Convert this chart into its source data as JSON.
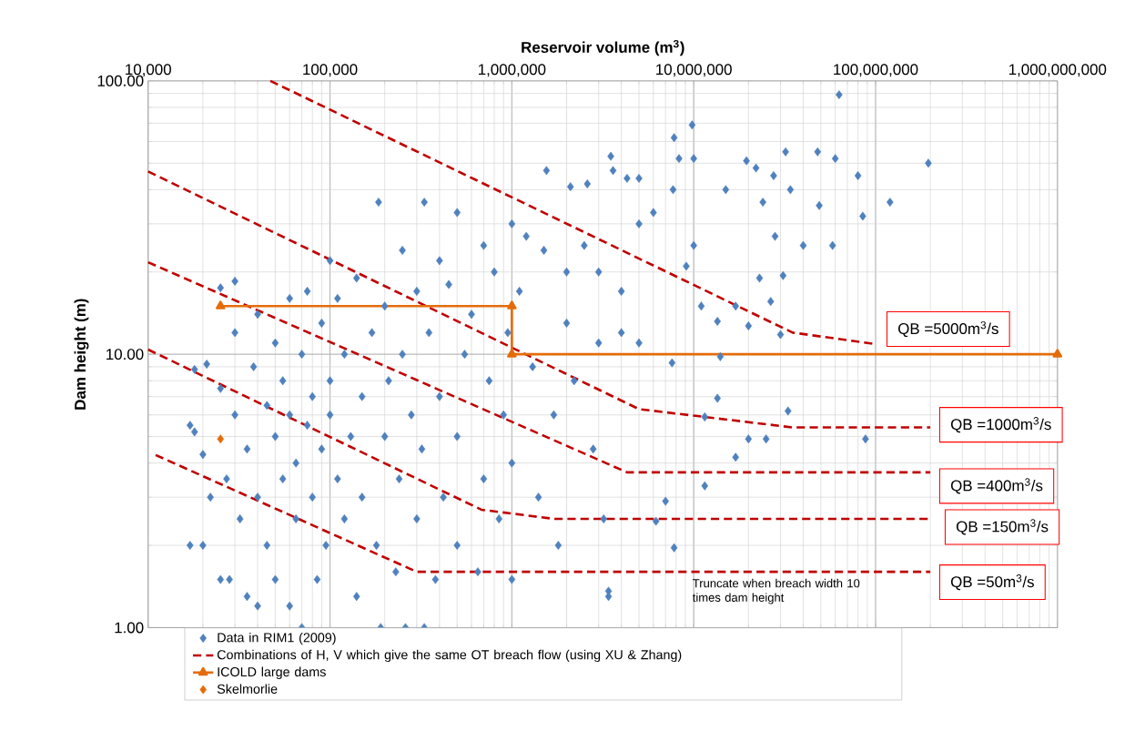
{
  "chart_data": {
    "type": "scatter",
    "xlabel": "Reservoir volume (m$^{3}$)",
    "ylabel": "Dam height (m)",
    "log": "xy",
    "grid": true,
    "legend": "bottom",
    "xlim": [
      10000,
      1000000000
    ],
    "ylim": [
      1,
      100
    ],
    "xticks": [
      {
        "value": 10000,
        "label": "10,000"
      },
      {
        "value": 100000,
        "label": "100,000"
      },
      {
        "value": 1000000,
        "label": "1,000,000"
      },
      {
        "value": 10000000,
        "label": "10,000,000"
      },
      {
        "value": 100000000,
        "label": "100,000,000"
      },
      {
        "value": 1000000000,
        "label": "1,000,000,000"
      }
    ],
    "yticks": [
      {
        "value": 1,
        "label": "1.00"
      },
      {
        "value": 10,
        "label": "10.00"
      },
      {
        "value": 100,
        "label": "100.00"
      }
    ],
    "marker": "diamond",
    "series": [
      {
        "name": "Data in RIM1 (2009)",
        "color": "#4f81bd",
        "x": [
          17000,
          17000,
          18000,
          18000,
          20000,
          20000,
          21000,
          22000,
          25000,
          25000,
          28000,
          30000,
          25000,
          27000,
          30000,
          30000,
          32000,
          35000,
          35000,
          38000,
          40000,
          40000,
          40000,
          45000,
          45000,
          50000,
          50000,
          50000,
          55000,
          55000,
          60000,
          60000,
          60000,
          65000,
          65000,
          70000,
          70000,
          75000,
          75000,
          80000,
          80000,
          85000,
          90000,
          90000,
          95000,
          100000,
          100000,
          100000,
          110000,
          110000,
          120000,
          120000,
          130000,
          140000,
          140000,
          150000,
          150000,
          170000,
          180000,
          185000,
          190000,
          200000,
          200000,
          210000,
          230000,
          240000,
          250000,
          250000,
          260000,
          280000,
          300000,
          300000,
          320000,
          330000,
          330000,
          350000,
          380000,
          400000,
          400000,
          420000,
          450000,
          500000,
          500000,
          500000,
          550000,
          600000,
          650000,
          700000,
          700000,
          750000,
          800000,
          850000,
          900000,
          950000,
          1000000,
          1000000,
          1000000,
          1100000,
          1200000,
          1300000,
          1400000,
          1500000,
          1550000,
          1700000,
          1800000,
          2000000,
          2000000,
          2100000,
          2200000,
          2500000,
          2600000,
          2800000,
          3000000,
          3000000,
          3200000,
          3400000,
          3400000,
          3500000,
          3600000,
          4000000,
          4000000,
          4300000,
          5000000,
          5000000,
          5000000,
          6000000,
          6200000,
          7000000,
          7600000,
          7700000,
          7800000,
          7800000,
          8300000,
          9100000,
          9800000,
          10000000,
          10000000,
          11000000,
          11500000,
          11500000,
          13500000,
          13500000,
          14000000,
          15000000,
          17000000,
          17000000,
          19500000,
          20000000,
          20000000,
          22000000,
          23000000,
          24000000,
          25000000,
          26500000,
          27500000,
          28000000,
          30000000,
          31000000,
          32000000,
          33000000,
          34000000,
          40000000,
          48000000,
          49000000,
          58000000,
          60000000,
          63000000,
          80000000,
          85000000,
          88000000,
          120000000,
          195000000
        ],
        "values": [
          2.0,
          5.5,
          5.2,
          8.8,
          2.0,
          4.3,
          9.2,
          3.0,
          1.5,
          17.5,
          1.5,
          18.5,
          7.5,
          3.5,
          12,
          6,
          2.5,
          1.3,
          4.5,
          9,
          3,
          1.2,
          14,
          6.5,
          2,
          5,
          11,
          1.5,
          3.5,
          8,
          16,
          6,
          1.2,
          2.5,
          4,
          1.0,
          10,
          5.5,
          17,
          3,
          7,
          1.5,
          13,
          4.5,
          2,
          22,
          8,
          6,
          3.5,
          16,
          10,
          2.5,
          5,
          19,
          1.3,
          7,
          3,
          12,
          2,
          36,
          1.0,
          5,
          15,
          8,
          1.6,
          3.5,
          24,
          10,
          1.0,
          6,
          2.5,
          17,
          4.5,
          1.0,
          36,
          12,
          1.5,
          7,
          22,
          3,
          18,
          5,
          33,
          2,
          10,
          14,
          1.6,
          25,
          3.5,
          8,
          20,
          2.5,
          6,
          12,
          30,
          4,
          1.5,
          17,
          27,
          9,
          3,
          24,
          47,
          6,
          2,
          20,
          13,
          41,
          8,
          25,
          42,
          4.5,
          20,
          11,
          2.5,
          1.36,
          1.3,
          53,
          47,
          17,
          12,
          44,
          30,
          44,
          11,
          33,
          2.45,
          2.9,
          9.3,
          40,
          1.96,
          62,
          52,
          21,
          69,
          52,
          25,
          15,
          5.9,
          3.3,
          6.9,
          13.2,
          9.8,
          40,
          15,
          4.2,
          51,
          12.7,
          4.9,
          48,
          19,
          36,
          4.9,
          15.6,
          45,
          27,
          11.8,
          19.4,
          55,
          6.2,
          40,
          25,
          55,
          35,
          25,
          52,
          89,
          45,
          32,
          4.9,
          36,
          50
        ]
      },
      {
        "name": "Combinations of H, V which give the same OT breach flow (using XU & Zhang)",
        "type": "line",
        "color": "#c00000",
        "line_style": "dashed",
        "marker": "none",
        "x": [
          47000,
          35000000,
          100000000
        ],
        "values": [
          100,
          12,
          10.9
        ]
      },
      {
        "type": "line",
        "color": "#c00000",
        "line_style": "dashed",
        "marker": "none",
        "x": [
          10000,
          5000000,
          35000000,
          200000000
        ],
        "values": [
          46.6,
          6.3,
          5.4,
          5.4
        ]
      },
      {
        "type": "line",
        "color": "#c00000",
        "line_style": "dashed",
        "marker": "none",
        "x": [
          10000,
          4300000,
          200000000
        ],
        "values": [
          21.7,
          3.7,
          3.7
        ]
      },
      {
        "type": "line",
        "color": "#c00000",
        "line_style": "dashed",
        "marker": "none",
        "x": [
          10000,
          680000,
          1700000,
          200000000
        ],
        "values": [
          10.4,
          2.7,
          2.5,
          2.5
        ]
      },
      {
        "type": "line",
        "color": "#c00000",
        "line_style": "dashed",
        "marker": "none",
        "x": [
          11000,
          300000,
          200000000
        ],
        "values": [
          4.28,
          1.6,
          1.6
        ]
      },
      {
        "name": "ICOLD large dams",
        "type": "line",
        "color": "#e46c0a",
        "line_style": "solid",
        "marker": "triangle",
        "x": [
          25000,
          1000000,
          1000000,
          1000000000
        ],
        "values": [
          15,
          15,
          10,
          10
        ]
      },
      {
        "name": "Skelmorlie",
        "color": "#e46c0a",
        "x": [
          25000
        ],
        "values": [
          4.9
        ]
      }
    ],
    "annotations": [
      "QB =5000m$^{3}$/s",
      "QB =1000m$^{3}$/s",
      "QB =400m$^{3}$/s",
      "QB =150m$^{3}$/s",
      "QB =50m$^{3}$/s",
      "Truncate when breach width 10 times dam height"
    ]
  }
}
